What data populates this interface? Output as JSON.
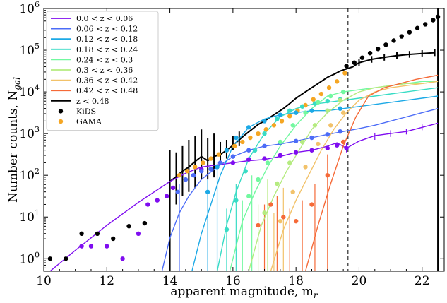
{
  "chart_data": {
    "type": "line",
    "xlabel": "apparent magnitude, m_r",
    "ylabel": "Number counts, N_gal",
    "xlim": [
      10,
      22.7
    ],
    "ylim_log10": [
      -0.3,
      6
    ],
    "yscale": "log",
    "x_ticks": [
      10,
      12,
      14,
      16,
      18,
      20,
      22
    ],
    "y_ticks": [
      {
        "exp": 0,
        "label": "10^0"
      },
      {
        "exp": 1,
        "label": "10^1"
      },
      {
        "exp": 2,
        "label": "10^2"
      },
      {
        "exp": 3,
        "label": "10^3"
      },
      {
        "exp": 4,
        "label": "10^4"
      },
      {
        "exp": 5,
        "label": "10^5"
      },
      {
        "exp": 6,
        "label": "10^6"
      }
    ],
    "vlines": [
      {
        "x": 19.65,
        "style": "dashed"
      },
      {
        "x": 22.5,
        "style": "solid"
      }
    ],
    "legend_position": "top-left",
    "legend": [
      {
        "label": "0.0 < z < 0.06",
        "color": "#7f0df0",
        "kind": "line"
      },
      {
        "label": "0.06 < z < 0.12",
        "color": "#4c6cf7",
        "kind": "line"
      },
      {
        "label": "0.12 < z < 0.18",
        "color": "#1ca9e6",
        "kind": "line"
      },
      {
        "label": "0.18 < z < 0.24",
        "color": "#38dcc5",
        "kind": "line"
      },
      {
        "label": "0.24 < z < 0.3",
        "color": "#72f8a0",
        "kind": "line"
      },
      {
        "label": "0.3 < z < 0.36",
        "color": "#b5eb80",
        "kind": "line"
      },
      {
        "label": "0.36 < z < 0.42",
        "color": "#f2c26a",
        "kind": "line"
      },
      {
        "label": "0.42 < z < 0.48",
        "color": "#f56a38",
        "kind": "line"
      },
      {
        "label": "z < 0.48",
        "color": "#000000",
        "kind": "line"
      },
      {
        "label": "KiDS",
        "color": "#000000",
        "kind": "dot"
      },
      {
        "label": "GAMA",
        "color": "#f5a623",
        "kind": "dot"
      }
    ],
    "series": [
      {
        "name": "z < 0.48",
        "color": "#000000",
        "kind": "line",
        "x": [
          14.0,
          14.2,
          14.4,
          14.6,
          14.8,
          15.0,
          15.2,
          15.4,
          15.6,
          15.8,
          16.0,
          16.2,
          16.4,
          16.6,
          16.8,
          17.0,
          17.2,
          17.4,
          17.6,
          17.8,
          18.0,
          18.2,
          18.4,
          18.6,
          18.8,
          19.0,
          19.2,
          19.4,
          19.6,
          19.8,
          20.0,
          20.4,
          20.8,
          21.2,
          21.6,
          22.0,
          22.4
        ],
        "logy": [
          1.85,
          1.97,
          2.1,
          2.2,
          2.33,
          2.45,
          2.35,
          2.45,
          2.5,
          2.6,
          2.72,
          2.85,
          2.98,
          3.1,
          3.22,
          3.3,
          3.4,
          3.5,
          3.6,
          3.72,
          3.85,
          3.95,
          4.05,
          4.15,
          4.25,
          4.35,
          4.42,
          4.5,
          4.55,
          4.6,
          4.7,
          4.78,
          4.83,
          4.87,
          4.9,
          4.92,
          4.94
        ],
        "err_x": [
          14.0,
          14.2,
          14.4,
          14.6,
          14.8,
          15.0,
          15.2,
          15.4,
          15.6,
          15.8,
          16.0,
          16.2,
          20.0,
          20.4,
          20.8,
          21.2,
          21.6,
          22.0,
          22.4
        ],
        "err_logy": [
          [
            -0.3,
            2.6
          ],
          [
            1.3,
            2.55
          ],
          [
            1.5,
            2.7
          ],
          [
            1.6,
            2.85
          ],
          [
            1.7,
            2.95
          ],
          [
            1.9,
            3.1
          ],
          [
            1.9,
            2.9
          ],
          [
            1.95,
            3.0
          ],
          [
            2.3,
            2.8
          ],
          [
            2.4,
            2.85
          ],
          [
            2.6,
            2.95
          ],
          [
            2.7,
            3.05
          ],
          [
            4.62,
            4.78
          ],
          [
            4.7,
            4.86
          ],
          [
            4.75,
            4.9
          ],
          [
            4.79,
            4.95
          ],
          [
            4.82,
            4.98
          ],
          [
            4.85,
            5.0
          ],
          [
            4.86,
            5.02
          ]
        ]
      },
      {
        "name": "0.0 < z < 0.06",
        "color": "#7f0df0",
        "kind": "line",
        "x": [
          10.2,
          11,
          12,
          13,
          14,
          14.5,
          15,
          15.5,
          16,
          16.5,
          17,
          17.5,
          18,
          18.5,
          19,
          19.3,
          19.6,
          20,
          20.5,
          21,
          21.5,
          22,
          22.5
        ],
        "logy": [
          -0.3,
          0.2,
          0.8,
          1.35,
          1.85,
          2.05,
          2.2,
          2.25,
          2.3,
          2.35,
          2.38,
          2.45,
          2.55,
          2.6,
          2.7,
          2.78,
          2.65,
          2.82,
          2.95,
          3.0,
          3.05,
          3.15,
          3.25
        ]
      },
      {
        "name": "0.06 < z < 0.12",
        "color": "#4c6cf7",
        "kind": "line",
        "x": [
          13.75,
          14.0,
          14.3,
          14.6,
          15.0,
          15.5,
          16,
          16.5,
          17,
          17.5,
          18,
          18.5,
          19,
          19.5,
          20,
          20.5,
          21,
          21.5,
          22,
          22.5
        ],
        "logy": [
          -0.3,
          0.5,
          1.1,
          1.5,
          1.9,
          2.2,
          2.45,
          2.6,
          2.7,
          2.75,
          2.82,
          2.9,
          2.98,
          3.05,
          3.12,
          3.2,
          3.3,
          3.4,
          3.5,
          3.6
        ]
      },
      {
        "name": "0.12 < z < 0.18",
        "color": "#1ca9e6",
        "kind": "line",
        "x": [
          14.7,
          15.0,
          15.3,
          15.6,
          16,
          16.5,
          17,
          17.5,
          18,
          18.5,
          19,
          19.5,
          20,
          20.5,
          21,
          21.5,
          22,
          22.5
        ],
        "logy": [
          -0.3,
          0.6,
          1.3,
          2.0,
          2.7,
          3.15,
          3.35,
          3.45,
          3.5,
          3.55,
          3.55,
          3.6,
          3.65,
          3.7,
          3.75,
          3.8,
          3.85,
          3.9
        ]
      },
      {
        "name": "0.18 < z < 0.24",
        "color": "#38dcc5",
        "kind": "line",
        "x": [
          15.5,
          15.8,
          16.1,
          16.5,
          17,
          17.5,
          18,
          18.5,
          19,
          19.5,
          20,
          20.5,
          21,
          21.5,
          22,
          22.5
        ],
        "logy": [
          -0.3,
          0.8,
          1.6,
          2.4,
          3.0,
          3.4,
          3.6,
          3.7,
          3.75,
          3.8,
          3.85,
          3.9,
          3.95,
          4.0,
          4.05,
          4.1
        ]
      },
      {
        "name": "0.24 < z < 0.3",
        "color": "#72f8a0",
        "kind": "line",
        "x": [
          15.9,
          16.3,
          16.7,
          17.1,
          17.5,
          18,
          18.5,
          19,
          19.5,
          20,
          20.5,
          21,
          21.5,
          22,
          22.5
        ],
        "logy": [
          -0.3,
          0.9,
          1.6,
          2.2,
          2.7,
          3.2,
          3.6,
          3.9,
          4.0,
          4.05,
          4.1,
          4.15,
          4.2,
          4.25,
          4.25
        ]
      },
      {
        "name": "0.3 < z < 0.36",
        "color": "#b5eb80",
        "kind": "line",
        "x": [
          16.5,
          16.9,
          17.3,
          17.7,
          18.1,
          18.5,
          19,
          19.5,
          20,
          20.5,
          21,
          21.5,
          22,
          22.5
        ],
        "logy": [
          -0.3,
          0.8,
          1.5,
          2.1,
          2.6,
          3.1,
          3.5,
          3.8,
          4.0,
          4.1,
          4.15,
          4.2,
          4.2,
          4.25
        ]
      },
      {
        "name": "0.36 < z < 0.42",
        "color": "#f2c26a",
        "kind": "line",
        "x": [
          17.2,
          17.6,
          18.0,
          18.4,
          18.8,
          19.2,
          19.6,
          20,
          20.5,
          21,
          21.5,
          22,
          22.5
        ],
        "logy": [
          -0.3,
          0.7,
          1.4,
          2.0,
          2.6,
          3.1,
          3.5,
          3.8,
          4.0,
          4.1,
          4.15,
          4.2,
          4.25
        ]
      },
      {
        "name": "0.42 < z < 0.48",
        "color": "#f56a38",
        "kind": "line",
        "x": [
          18.3,
          18.7,
          19.1,
          19.5,
          19.9,
          20.3,
          20.8,
          21.3,
          21.8,
          22.5
        ],
        "logy": [
          -0.3,
          0.8,
          1.8,
          2.7,
          3.4,
          3.9,
          4.1,
          4.2,
          4.3,
          4.4
        ]
      },
      {
        "name": "KiDS",
        "color": "#000000",
        "kind": "dot",
        "x": [
          10.2,
          10.7,
          11.2,
          11.7,
          12.2,
          12.7,
          13.2,
          19.6,
          19.85,
          20.1,
          20.35,
          20.6,
          20.85,
          21.1,
          21.35,
          21.6,
          21.85,
          22.1,
          22.35,
          22.5
        ],
        "logy": [
          0.0,
          0.0,
          0.6,
          0.6,
          0.48,
          0.78,
          0.85,
          4.62,
          4.7,
          4.82,
          4.93,
          5.03,
          5.13,
          5.23,
          5.33,
          5.43,
          5.53,
          5.62,
          5.72,
          5.8
        ]
      },
      {
        "name": "GAMA",
        "color": "#f5a623",
        "kind": "dot",
        "x": [
          14.3,
          14.55,
          14.8,
          15.05,
          15.3,
          15.55,
          15.8,
          16.05,
          16.3,
          16.55,
          16.8,
          17.05,
          17.3,
          17.55,
          17.8,
          18.05,
          18.3,
          18.55,
          18.8,
          19.05,
          19.3,
          19.55
        ],
        "logy": [
          2.0,
          2.1,
          2.2,
          2.3,
          2.4,
          2.5,
          2.6,
          2.7,
          2.8,
          2.9,
          3.0,
          3.1,
          3.2,
          3.3,
          3.42,
          3.55,
          3.68,
          3.82,
          3.95,
          4.1,
          4.25,
          4.45
        ]
      },
      {
        "name": "",
        "color": "#7f0df0",
        "kind": "dot",
        "x": [
          11.2,
          11.5,
          12.0,
          12.5,
          13.0,
          13.3,
          13.6,
          13.9,
          14.1,
          15.0,
          15.5,
          16.0,
          16.5,
          17.0,
          17.5,
          18.0,
          18.5,
          19.0,
          19.3,
          19.6
        ],
        "logy": [
          0.3,
          0.3,
          0.3,
          0.0,
          0.6,
          1.3,
          1.4,
          1.5,
          1.7,
          2.15,
          2.2,
          2.3,
          2.38,
          2.4,
          2.48,
          2.55,
          2.6,
          2.65,
          2.72,
          2.65
        ]
      },
      {
        "name": "",
        "color": "#4c6cf7",
        "kind": "dot",
        "x": [
          14.25,
          14.5,
          14.75,
          15.0,
          15.3,
          15.6,
          16.0,
          16.5,
          17.0,
          17.5,
          18.0,
          18.5,
          19.0,
          19.4
        ],
        "logy": [
          1.6,
          1.9,
          2.0,
          2.1,
          2.15,
          2.3,
          2.45,
          2.6,
          2.7,
          2.78,
          2.82,
          2.9,
          2.98,
          3.05
        ]
      },
      {
        "name": "",
        "color": "#1ca9e6",
        "kind": "dot",
        "x": [
          15.2,
          15.5,
          15.8,
          16.1,
          16.5,
          17.0,
          17.5,
          18.0,
          18.5,
          19.0,
          19.4
        ],
        "logy": [
          1.6,
          2.2,
          2.6,
          2.9,
          3.15,
          3.3,
          3.45,
          3.5,
          3.55,
          3.55,
          3.6
        ]
      },
      {
        "name": "",
        "color": "#38dcc5",
        "kind": "dot",
        "x": [
          15.8,
          16.1,
          16.4,
          16.7,
          17.0,
          17.4,
          17.8,
          18.2,
          18.6,
          19.0,
          19.4
        ],
        "logy": [
          0.7,
          1.4,
          2.1,
          2.6,
          3.0,
          3.35,
          3.55,
          3.65,
          3.72,
          3.78,
          3.82
        ]
      },
      {
        "name": "",
        "color": "#72f8a0",
        "kind": "dot",
        "x": [
          16.5,
          16.8,
          17.1,
          17.5,
          17.9,
          18.3,
          18.7,
          19.1,
          19.5
        ],
        "logy": [
          1.5,
          1.9,
          2.3,
          2.8,
          3.2,
          3.5,
          3.75,
          3.9,
          4.0
        ]
      },
      {
        "name": "",
        "color": "#b5eb80",
        "kind": "dot",
        "x": [
          17.0,
          17.4,
          17.8,
          18.2,
          18.6,
          19.0,
          19.4
        ],
        "logy": [
          1.1,
          1.8,
          2.3,
          2.8,
          3.2,
          3.55,
          3.8
        ]
      },
      {
        "name": "",
        "color": "#f2c26a",
        "kind": "dot",
        "x": [
          17.5,
          17.9,
          18.3,
          18.7,
          19.1,
          19.5
        ],
        "logy": [
          0.9,
          1.6,
          2.2,
          2.75,
          3.2,
          3.5
        ]
      },
      {
        "name": "",
        "color": "#f56a38",
        "kind": "dot",
        "x": [
          16.8,
          17.2,
          17.6,
          18.0,
          18.5,
          19.0,
          19.5
        ],
        "logy": [
          0.8,
          1.3,
          1.0,
          0.9,
          1.3,
          2.0,
          2.8
        ]
      }
    ],
    "colored_errorbars": [
      {
        "color": "#4c6cf7",
        "x": [
          14.0,
          14.3
        ],
        "range": [
          [
            -0.3,
            1.4
          ],
          [
            -0.3,
            1.8
          ]
        ]
      },
      {
        "color": "#1ca9e6",
        "x": [
          15.2,
          15.5
        ],
        "range": [
          [
            -0.3,
            1.9
          ],
          [
            -0.3,
            2.3
          ]
        ]
      },
      {
        "color": "#38dcc5",
        "x": [
          15.8,
          16.1
        ],
        "range": [
          [
            -0.3,
            1.2
          ],
          [
            -0.3,
            1.8
          ]
        ]
      },
      {
        "color": "#72f8a0",
        "x": [
          16.3,
          16.6
        ],
        "range": [
          [
            -0.3,
            1.4
          ],
          [
            -0.3,
            2.0
          ]
        ]
      },
      {
        "color": "#b5eb80",
        "x": [
          16.8,
          17.1
        ],
        "range": [
          [
            -0.3,
            1.3
          ],
          [
            -0.3,
            1.9
          ]
        ]
      },
      {
        "color": "#f2c26a",
        "x": [
          17.3,
          17.6
        ],
        "range": [
          [
            -0.3,
            1.1
          ],
          [
            -0.3,
            1.7
          ]
        ]
      },
      {
        "color": "#f56a38",
        "x": [
          17.0,
          17.4,
          17.8,
          18.2,
          18.6,
          19.0
        ],
        "range": [
          [
            -0.3,
            1.3
          ],
          [
            -0.3,
            1.5
          ],
          [
            -0.3,
            1.2
          ],
          [
            -0.3,
            1.4
          ],
          [
            -0.3,
            1.8
          ],
          [
            -0.3,
            2.5
          ]
        ]
      },
      {
        "color": "#7f0df0",
        "x": [
          19.6,
          20.5,
          21.0,
          21.5,
          22.0
        ],
        "range": [
          [
            2.55,
            2.78
          ],
          [
            2.85,
            3.02
          ],
          [
            2.92,
            3.08
          ],
          [
            2.98,
            3.12
          ],
          [
            3.08,
            3.22
          ]
        ]
      }
    ]
  }
}
